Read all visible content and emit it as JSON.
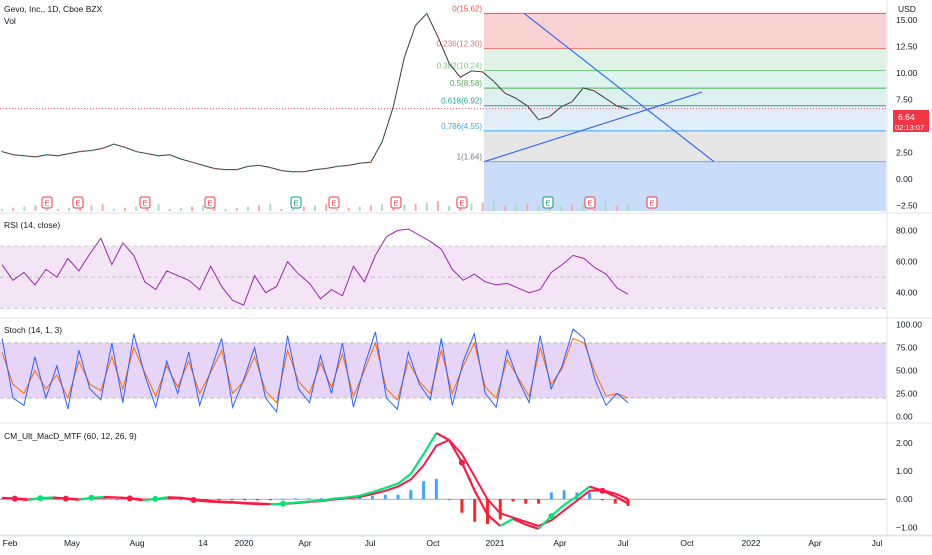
{
  "header": {
    "symbol_title": "Gevo, Inc., 1D, Cboe BZX",
    "vol_label": "Vol",
    "currency": "USD",
    "last_price": "6.64",
    "countdown": "02:13:07"
  },
  "colors": {
    "price": "#3a3a3a",
    "rsi": "#9c27b0",
    "stoch_k": "#2962ff",
    "stoch_d": "#ff6d00",
    "macd_up": "#00e676",
    "macd_down": "#ff1744",
    "hist_pos": "#2196f3",
    "hist_neg": "#ff0000",
    "trendline": "#2962ff",
    "price_tag": "#f23645",
    "earnings": "#f23645",
    "event_e_green": "#089981",
    "event_e_purple": "#9c27b0"
  },
  "x_axis": {
    "labels": [
      "Feb",
      "May",
      "Aug",
      "14",
      "2020",
      "Apr",
      "Jul",
      "Oct",
      "2021",
      "Apr",
      "Jul",
      "Oct",
      "2022",
      "Apr",
      "Jul"
    ]
  },
  "events": [
    {
      "label": "E",
      "kind": "earnings"
    },
    {
      "label": "E",
      "kind": "earnings"
    },
    {
      "label": "E",
      "kind": "earnings"
    },
    {
      "label": "E",
      "kind": "earnings"
    },
    {
      "label": "E",
      "kind": "dividend"
    },
    {
      "label": "E",
      "kind": "earnings"
    },
    {
      "label": "E",
      "kind": "earnings"
    },
    {
      "label": "E",
      "kind": "earnings"
    },
    {
      "label": "E",
      "kind": "dividend"
    },
    {
      "label": "E",
      "kind": "earnings"
    },
    {
      "label": "E",
      "kind": "earnings"
    },
    {
      "label": "E",
      "kind": "future"
    }
  ],
  "chart_data": [
    {
      "type": "line",
      "pane": "price",
      "title": "Gevo, Inc., 1D, Cboe BZX",
      "y_ticks": [
        "15.00",
        "12.50",
        "10.00",
        "7.50",
        "5.00",
        "2.50",
        "0.00",
        "−2.50"
      ],
      "ylim": [
        -3,
        16.5
      ],
      "last_value": 6.64,
      "fibonacci": [
        {
          "label": "0(15.62)",
          "level": 15.62
        },
        {
          "label": "0.236(12.30)",
          "level": 12.3
        },
        {
          "label": "0.382(10.24)",
          "level": 10.24
        },
        {
          "label": "0.5(8.58)",
          "level": 8.58
        },
        {
          "label": "0.618(6.92)",
          "level": 6.92
        },
        {
          "label": "0.786(4.55)",
          "level": 4.55
        },
        {
          "label": "1(1.64)",
          "level": 1.64
        }
      ],
      "series": [
        {
          "values": [
            2.6,
            2.3,
            2.2,
            2.1,
            2.3,
            2.2,
            2.4,
            2.6,
            2.7,
            2.9,
            3.3,
            3.0,
            2.6,
            2.4,
            2.2,
            2.3,
            1.9,
            1.6,
            1.3,
            1.0,
            0.9,
            0.9,
            1.2,
            1.3,
            1.1,
            0.8,
            0.7,
            0.7,
            0.9,
            1.0,
            1.2,
            1.3,
            1.5,
            1.6,
            3.5,
            6.8,
            11.5,
            14.5,
            15.6,
            13.4,
            10.9,
            9.6,
            10.2,
            10.1,
            9.2,
            8.1,
            7.6,
            6.9,
            5.6,
            5.9,
            6.8,
            7.3,
            8.6,
            8.3,
            7.6,
            6.9,
            6.6
          ]
        }
      ]
    },
    {
      "type": "line",
      "pane": "rsi",
      "title": "RSI (14, close)",
      "y_ticks": [
        "80.00",
        "60.00",
        "40.00"
      ],
      "ylim": [
        25,
        90
      ],
      "bands": [
        70,
        50,
        30
      ],
      "series": [
        {
          "name": "RSI",
          "values": [
            58,
            48,
            53,
            45,
            55,
            50,
            62,
            54,
            65,
            75,
            58,
            72,
            64,
            47,
            42,
            54,
            51,
            48,
            42,
            57,
            44,
            35,
            32,
            51,
            40,
            44,
            60,
            52,
            46,
            36,
            42,
            38,
            57,
            47,
            64,
            76,
            80,
            81,
            77,
            73,
            68,
            55,
            48,
            52,
            47,
            45,
            46,
            43,
            40,
            42,
            53,
            58,
            64,
            62,
            56,
            52,
            43,
            39
          ]
        }
      ]
    },
    {
      "type": "line",
      "pane": "stoch",
      "title": "Stoch (14, 1, 3)",
      "y_ticks": [
        "100.00",
        "75.00",
        "50.00",
        "25.00",
        "0.00"
      ],
      "ylim": [
        -5,
        105
      ],
      "bands": [
        80,
        20
      ],
      "series": [
        {
          "name": "%K",
          "values": [
            85,
            20,
            12,
            65,
            20,
            55,
            8,
            72,
            30,
            18,
            80,
            15,
            90,
            45,
            10,
            60,
            25,
            70,
            12,
            50,
            85,
            10,
            40,
            75,
            20,
            5,
            88,
            30,
            15,
            66,
            25,
            80,
            10,
            55,
            92,
            20,
            8,
            70,
            35,
            18,
            85,
            12,
            60,
            90,
            25,
            10,
            72,
            40,
            15,
            88,
            30,
            55,
            95,
            85,
            40,
            12,
            25,
            15
          ]
        },
        {
          "name": "%D",
          "values": [
            70,
            35,
            25,
            50,
            30,
            45,
            20,
            60,
            35,
            28,
            65,
            30,
            75,
            48,
            22,
            55,
            32,
            60,
            25,
            48,
            72,
            25,
            38,
            65,
            28,
            15,
            72,
            38,
            25,
            58,
            32,
            68,
            22,
            50,
            80,
            30,
            18,
            60,
            38,
            25,
            72,
            25,
            55,
            80,
            32,
            20,
            62,
            42,
            22,
            75,
            35,
            52,
            85,
            80,
            48,
            22,
            25,
            20
          ]
        }
      ]
    },
    {
      "type": "line",
      "pane": "macd",
      "title": "CM_Ult_MacD_MTF (60, 12, 26, 9)",
      "y_ticks": [
        "2.00",
        "1.00",
        "0.00",
        "−1.00"
      ],
      "ylim": [
        -1.2,
        2.6
      ],
      "series": [
        {
          "name": "MACD",
          "values": [
            0.05,
            0.02,
            -0.03,
            0.04,
            0.06,
            0.02,
            -0.02,
            0.05,
            0.08,
            0.06,
            0.03,
            -0.04,
            0.01,
            0.07,
            0.05,
            -0.03,
            -0.08,
            -0.1,
            -0.12,
            -0.15,
            -0.17,
            -0.18,
            -0.16,
            -0.12,
            -0.08,
            -0.05,
            0.02,
            0.06,
            0.12,
            0.25,
            0.4,
            0.55,
            0.9,
            1.6,
            2.35,
            2.1,
            1.3,
            0.3,
            -0.55,
            -0.95,
            -0.7,
            -0.9,
            -1.05,
            -0.6,
            -0.2,
            0.1,
            0.45,
            0.3,
            0.1,
            -0.15
          ]
        },
        {
          "name": "Signal",
          "values": [
            0.03,
            0.03,
            0.0,
            0.02,
            0.04,
            0.03,
            0.0,
            0.03,
            0.06,
            0.06,
            0.04,
            -0.01,
            0.0,
            0.04,
            0.05,
            0.0,
            -0.05,
            -0.08,
            -0.1,
            -0.13,
            -0.15,
            -0.17,
            -0.17,
            -0.14,
            -0.1,
            -0.07,
            -0.01,
            0.03,
            0.08,
            0.18,
            0.3,
            0.45,
            0.7,
            1.2,
            1.9,
            2.1,
            1.6,
            0.8,
            0.0,
            -0.5,
            -0.65,
            -0.8,
            -0.95,
            -0.75,
            -0.4,
            -0.05,
            0.3,
            0.32,
            0.2,
            0.0
          ]
        }
      ]
    }
  ]
}
